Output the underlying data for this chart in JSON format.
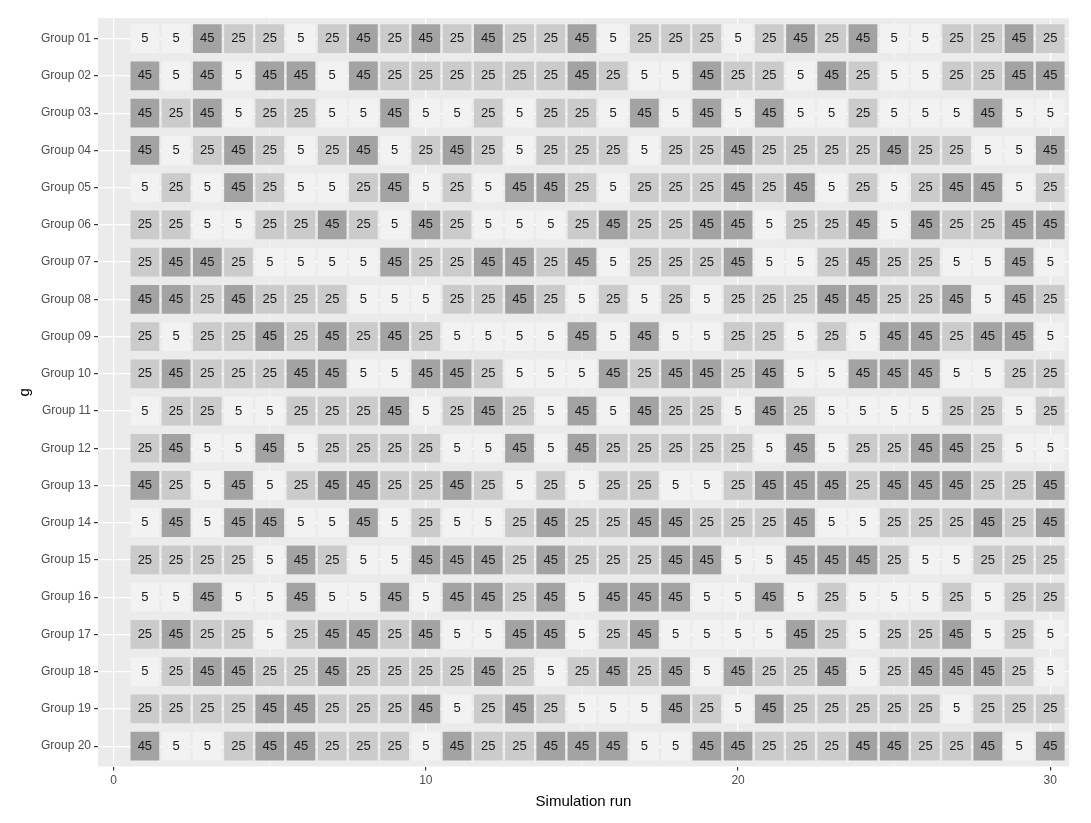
{
  "chart_data": {
    "type": "heatmap",
    "xlabel": "Simulation run",
    "ylabel": "g",
    "x": [
      1,
      2,
      3,
      4,
      5,
      6,
      7,
      8,
      9,
      10,
      11,
      12,
      13,
      14,
      15,
      16,
      17,
      18,
      19,
      20,
      21,
      22,
      23,
      24,
      25,
      26,
      27,
      28,
      29,
      30
    ],
    "xlim": [
      -0.5,
      30.6
    ],
    "xticks": [
      0,
      10,
      20,
      30
    ],
    "grid": true,
    "data_labels": true,
    "colors": [
      "#f2f2f2",
      "#a3a3a3"
    ],
    "y_categories": [
      "Group 01",
      "Group 02",
      "Group 03",
      "Group 04",
      "Group 05",
      "Group 06",
      "Group 07",
      "Group 08",
      "Group 09",
      "Group 10",
      "Group 11",
      "Group 12",
      "Group 13",
      "Group 14",
      "Group 15",
      "Group 16",
      "Group 17",
      "Group 18",
      "Group 19",
      "Group 20"
    ],
    "cells": [
      [
        5,
        5,
        45,
        25,
        25,
        5,
        25,
        45,
        25,
        45,
        25,
        45,
        25,
        25,
        45,
        5,
        25,
        25,
        25,
        5,
        25,
        45,
        25,
        45,
        5,
        5,
        25,
        25,
        45,
        25
      ],
      [
        45,
        5,
        45,
        5,
        45,
        45,
        5,
        45,
        25,
        25,
        25,
        25,
        25,
        25,
        45,
        25,
        5,
        5,
        45,
        25,
        25,
        5,
        45,
        25,
        5,
        5,
        25,
        25,
        45,
        45
      ],
      [
        45,
        25,
        45,
        5,
        25,
        25,
        5,
        5,
        45,
        5,
        5,
        25,
        5,
        25,
        25,
        5,
        45,
        5,
        45,
        5,
        45,
        5,
        5,
        25,
        5,
        5,
        5,
        45,
        5,
        5
      ],
      [
        45,
        5,
        25,
        45,
        25,
        5,
        25,
        45,
        5,
        25,
        45,
        25,
        5,
        25,
        25,
        25,
        5,
        25,
        25,
        45,
        25,
        25,
        25,
        25,
        45,
        25,
        25,
        5,
        5,
        45
      ],
      [
        5,
        25,
        5,
        45,
        25,
        5,
        5,
        25,
        45,
        5,
        25,
        5,
        45,
        45,
        25,
        5,
        25,
        25,
        25,
        45,
        25,
        45,
        5,
        25,
        5,
        25,
        45,
        45,
        5,
        25
      ],
      [
        25,
        25,
        5,
        5,
        25,
        25,
        45,
        25,
        5,
        45,
        25,
        5,
        5,
        5,
        25,
        45,
        25,
        25,
        45,
        45,
        5,
        25,
        25,
        45,
        5,
        45,
        25,
        25,
        45,
        45
      ],
      [
        25,
        45,
        45,
        25,
        5,
        5,
        5,
        5,
        45,
        25,
        25,
        45,
        45,
        25,
        45,
        5,
        25,
        25,
        25,
        45,
        5,
        5,
        25,
        45,
        25,
        25,
        5,
        5,
        45,
        5
      ],
      [
        45,
        45,
        25,
        45,
        25,
        25,
        25,
        5,
        5,
        5,
        25,
        25,
        45,
        25,
        5,
        25,
        5,
        25,
        5,
        25,
        25,
        25,
        45,
        45,
        25,
        25,
        45,
        5,
        45,
        25
      ],
      [
        25,
        5,
        25,
        25,
        45,
        25,
        45,
        25,
        45,
        25,
        5,
        5,
        5,
        5,
        45,
        5,
        45,
        5,
        5,
        25,
        25,
        5,
        25,
        5,
        45,
        45,
        25,
        45,
        45,
        5
      ],
      [
        25,
        45,
        25,
        25,
        25,
        45,
        45,
        5,
        5,
        45,
        45,
        25,
        5,
        5,
        5,
        45,
        25,
        45,
        45,
        25,
        45,
        5,
        5,
        45,
        45,
        45,
        5,
        5,
        25,
        25
      ],
      [
        5,
        25,
        25,
        5,
        5,
        25,
        25,
        25,
        45,
        5,
        25,
        45,
        25,
        5,
        45,
        5,
        45,
        25,
        25,
        5,
        45,
        25,
        5,
        5,
        5,
        5,
        25,
        25,
        5,
        25
      ],
      [
        25,
        45,
        5,
        5,
        45,
        5,
        25,
        25,
        25,
        25,
        5,
        5,
        45,
        5,
        45,
        25,
        25,
        25,
        25,
        25,
        5,
        45,
        5,
        25,
        25,
        45,
        45,
        25,
        5,
        5
      ],
      [
        45,
        25,
        5,
        45,
        5,
        25,
        45,
        45,
        25,
        25,
        45,
        25,
        5,
        25,
        5,
        25,
        25,
        5,
        5,
        25,
        45,
        45,
        45,
        25,
        45,
        45,
        45,
        25,
        25,
        45
      ],
      [
        5,
        45,
        5,
        45,
        45,
        5,
        5,
        45,
        5,
        25,
        5,
        5,
        25,
        45,
        25,
        25,
        45,
        45,
        25,
        25,
        25,
        45,
        5,
        5,
        25,
        25,
        25,
        45,
        25,
        45
      ],
      [
        25,
        25,
        25,
        25,
        5,
        45,
        25,
        5,
        5,
        45,
        45,
        45,
        25,
        45,
        25,
        25,
        25,
        45,
        45,
        5,
        5,
        45,
        45,
        45,
        25,
        5,
        5,
        25,
        25,
        25
      ],
      [
        5,
        5,
        45,
        5,
        5,
        45,
        5,
        5,
        45,
        5,
        45,
        45,
        25,
        45,
        5,
        45,
        45,
        45,
        5,
        5,
        45,
        5,
        25,
        5,
        5,
        5,
        25,
        5,
        25,
        25
      ],
      [
        25,
        45,
        25,
        25,
        5,
        25,
        45,
        45,
        25,
        45,
        5,
        5,
        45,
        45,
        5,
        25,
        45,
        5,
        5,
        5,
        5,
        45,
        25,
        5,
        25,
        25,
        45,
        5,
        25,
        5
      ],
      [
        5,
        25,
        45,
        45,
        25,
        25,
        45,
        25,
        25,
        25,
        25,
        45,
        25,
        5,
        25,
        45,
        25,
        45,
        5,
        45,
        25,
        25,
        45,
        5,
        25,
        45,
        45,
        45,
        25,
        5
      ],
      [
        25,
        25,
        25,
        25,
        45,
        45,
        25,
        25,
        25,
        45,
        5,
        25,
        45,
        25,
        5,
        5,
        5,
        45,
        25,
        5,
        45,
        25,
        25,
        25,
        25,
        25,
        5,
        25,
        25,
        25
      ],
      [
        45,
        5,
        5,
        25,
        45,
        45,
        25,
        25,
        25,
        5,
        45,
        25,
        25,
        45,
        45,
        45,
        5,
        5,
        45,
        45,
        25,
        25,
        25,
        45,
        45,
        25,
        25,
        45,
        5,
        45
      ]
    ]
  }
}
